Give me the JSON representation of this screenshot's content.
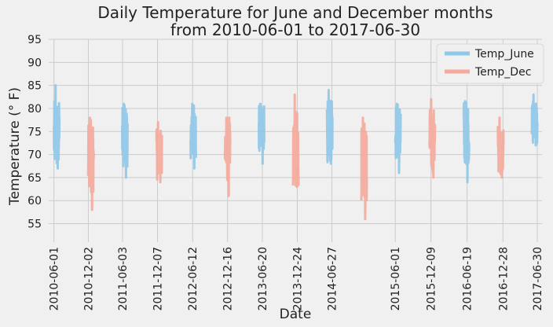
{
  "chart_data": {
    "type": "line",
    "title": "Daily Temperature for June and December months",
    "subtitle": "from 2010-06-01 to 2017-06-30",
    "xlabel": "Date",
    "ylabel": "Temperature (° F)",
    "ylim": [
      51,
      95
    ],
    "yticks": [
      55,
      60,
      65,
      70,
      75,
      80,
      85,
      90,
      95
    ],
    "xlim": [
      "2010-05-04",
      "2017-07-25"
    ],
    "xticks": [
      "2010-06-01",
      "2010-12-02",
      "2011-06-03",
      "2011-12-07",
      "2012-06-12",
      "2012-12-16",
      "2013-06-20",
      "2013-12-24",
      "2014-06-27",
      "2015-06-01",
      "2015-12-09",
      "2016-06-19",
      "2016-12-28",
      "2017-06-30"
    ],
    "grid": true,
    "legend_position": "top-right",
    "colors": {
      "june": "#8ec7e8",
      "dec": "#f5a89b",
      "grid": "#cbcbcb",
      "background": "#f0f0f0"
    },
    "series": [
      {
        "name": "Temp_June",
        "segments": [
          {
            "start": "2010-06-01",
            "end": "2010-06-30",
            "min": 67,
            "max": 85,
            "mean": 74
          },
          {
            "start": "2011-06-01",
            "end": "2011-06-30",
            "min": 65,
            "max": 81,
            "mean": 74
          },
          {
            "start": "2012-06-01",
            "end": "2012-06-30",
            "min": 67,
            "max": 81,
            "mean": 75
          },
          {
            "start": "2013-06-01",
            "end": "2013-06-30",
            "min": 68,
            "max": 81,
            "mean": 76
          },
          {
            "start": "2014-06-01",
            "end": "2014-06-30",
            "min": 68,
            "max": 84,
            "mean": 75
          },
          {
            "start": "2015-06-01",
            "end": "2015-06-30",
            "min": 66,
            "max": 81,
            "mean": 75
          },
          {
            "start": "2016-06-01",
            "end": "2016-06-30",
            "min": 64,
            "max": 81,
            "mean": 75
          },
          {
            "start": "2017-06-01",
            "end": "2017-06-30",
            "min": 72,
            "max": 83,
            "mean": 77
          }
        ]
      },
      {
        "name": "Temp_Dec",
        "segments": [
          {
            "start": "2010-12-01",
            "end": "2010-12-31",
            "min": 58,
            "max": 78,
            "mean": 70
          },
          {
            "start": "2011-12-01",
            "end": "2011-12-31",
            "min": 64,
            "max": 77,
            "mean": 70
          },
          {
            "start": "2012-12-01",
            "end": "2012-12-31",
            "min": 61,
            "max": 78,
            "mean": 71
          },
          {
            "start": "2013-12-01",
            "end": "2013-12-31",
            "min": 63,
            "max": 83,
            "mean": 71
          },
          {
            "start": "2014-12-01",
            "end": "2014-12-31",
            "min": 56,
            "max": 78,
            "mean": 69
          },
          {
            "start": "2015-12-01",
            "end": "2015-12-31",
            "min": 65,
            "max": 82,
            "mean": 73
          },
          {
            "start": "2016-12-01",
            "end": "2016-12-31",
            "min": 65,
            "max": 78,
            "mean": 71
          }
        ]
      }
    ]
  }
}
